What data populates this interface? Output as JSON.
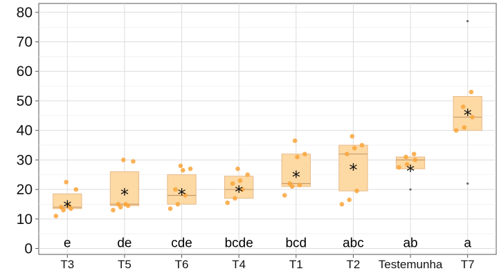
{
  "chart_data": {
    "type": "box",
    "title": "",
    "xlabel": "",
    "ylabel": "",
    "ylim": [
      -2,
      83
    ],
    "yticks": [
      0,
      10,
      20,
      30,
      40,
      50,
      60,
      70,
      80
    ],
    "grid": true,
    "colors": {
      "box_fill": "#fdd9a4",
      "box_stroke": "#e7b98a",
      "median": "#c79a6e",
      "points": "#f9a43a",
      "grid": "#dcdcdc",
      "axis": "#555555"
    },
    "categories": [
      "T3",
      "T5",
      "T6",
      "T4",
      "T1",
      "T2",
      "Testemunha",
      "T7"
    ],
    "groups": [
      {
        "name": "T3",
        "q1": 13.5,
        "median": 14,
        "q3": 18.5,
        "mean": 15.5,
        "letter": "e",
        "points": [
          11,
          13,
          13.5,
          14,
          14.5,
          20,
          22.5
        ],
        "outliers": []
      },
      {
        "name": "T5",
        "q1": 14.5,
        "median": 15,
        "q3": 26,
        "mean": 19.5,
        "letter": "de",
        "points": [
          13,
          14,
          14.5,
          15,
          15,
          29.5,
          30
        ],
        "outliers": []
      },
      {
        "name": "T6",
        "q1": 15,
        "median": 18,
        "q3": 25,
        "mean": 19.5,
        "letter": "cde",
        "points": [
          13.5,
          15,
          18,
          20,
          26.5,
          27,
          28
        ],
        "outliers": []
      },
      {
        "name": "T4",
        "q1": 17,
        "median": 20,
        "q3": 24.5,
        "mean": 20.5,
        "letter": "bcde",
        "points": [
          15.5,
          17,
          20,
          22,
          23,
          25,
          27
        ],
        "outliers": []
      },
      {
        "name": "T1",
        "q1": 21,
        "median": 22,
        "q3": 32,
        "mean": 25.5,
        "letter": "bcd",
        "points": [
          18,
          21,
          21.5,
          22,
          31,
          32,
          36.5
        ],
        "outliers": []
      },
      {
        "name": "T2",
        "q1": 19.5,
        "median": 32,
        "q3": 35,
        "mean": 28,
        "letter": "abc",
        "points": [
          15,
          16.5,
          19.5,
          32,
          34,
          35,
          38
        ],
        "outliers": []
      },
      {
        "name": "Testemunha",
        "q1": 27,
        "median": 30,
        "q3": 31,
        "mean": 27.5,
        "letter": "ab",
        "points": [
          27.5,
          28.5,
          30,
          31,
          32
        ],
        "outliers": [
          20
        ]
      },
      {
        "name": "T7",
        "q1": 40,
        "median": 44.5,
        "q3": 51.5,
        "mean": 46.5,
        "letter": "a",
        "points": [
          40,
          41,
          44.5,
          48,
          53
        ],
        "outliers": [
          22,
          77
        ]
      }
    ]
  }
}
